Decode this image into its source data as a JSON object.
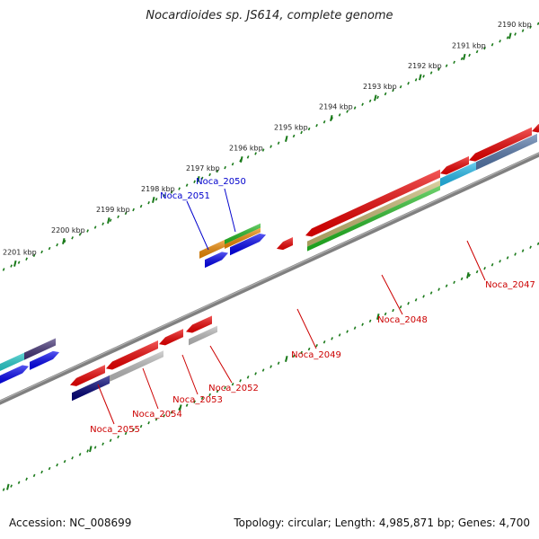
{
  "title": "Nocardioides sp. JS614, complete genome",
  "footer": {
    "accession": "Accession: NC_008699",
    "summary": "Topology: circular; Length: 4,985,871 bp; Genes: 4,700"
  },
  "ruler": {
    "ticks": [
      "2190 kbp",
      "2191 kbp",
      "2192 kbp",
      "2193 kbp",
      "2194 kbp",
      "2195 kbp",
      "2196 kbp",
      "2197 kbp",
      "2198 kbp",
      "2199 kbp",
      "2200 kbp",
      "2201 kbp"
    ]
  },
  "genes": [
    {
      "id": "Noca_2047",
      "strand": "minus",
      "label_color": "#cc0000"
    },
    {
      "id": "Noca_2048",
      "strand": "minus",
      "label_color": "#cc0000"
    },
    {
      "id": "Noca_2049",
      "strand": "minus",
      "label_color": "#cc0000"
    },
    {
      "id": "Noca_2050",
      "strand": "plus",
      "label_color": "#0000cc"
    },
    {
      "id": "Noca_2051",
      "strand": "plus",
      "label_color": "#0000cc"
    },
    {
      "id": "Noca_2052",
      "strand": "minus",
      "label_color": "#cc0000"
    },
    {
      "id": "Noca_2053",
      "strand": "minus",
      "label_color": "#cc0000"
    },
    {
      "id": "Noca_2054",
      "strand": "minus",
      "label_color": "#cc0000"
    },
    {
      "id": "Noca_2055",
      "strand": "minus",
      "label_color": "#cc0000"
    }
  ],
  "colors": {
    "backbone": "#808080",
    "ruler": "#1a7a1a",
    "forward": "#ee0000",
    "reverse_blue": "#0000ee",
    "orange": "#ee8800",
    "green": "#22bb22",
    "cyan": "#22bbee",
    "navy": "#000077",
    "grey": "#bbbbbb",
    "khaki": "#c8b870",
    "slate": "#5577aa",
    "purple": "#443377",
    "teal": "#22cccc"
  }
}
